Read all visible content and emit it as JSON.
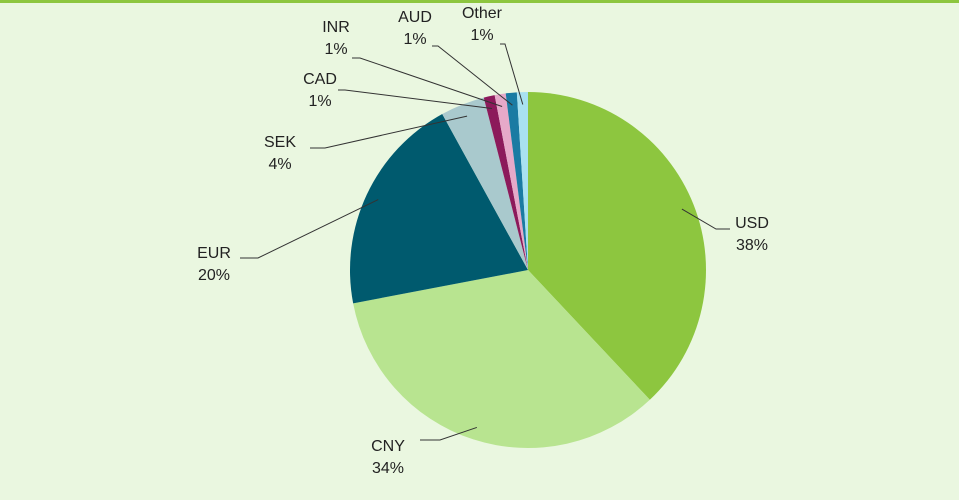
{
  "chart_data": {
    "type": "pie",
    "categories": [
      "USD",
      "CNY",
      "EUR",
      "SEK",
      "CAD",
      "INR",
      "AUD",
      "Other"
    ],
    "values": [
      38,
      34,
      20,
      4,
      1,
      1,
      1,
      1
    ],
    "value_labels": [
      "38%",
      "34%",
      "20%",
      "4%",
      "1%",
      "1%",
      "1%",
      "1%"
    ],
    "colors": [
      "#8dc63f",
      "#b8e490",
      "#005a6e",
      "#a9c9cd",
      "#8c1a5b",
      "#e6a9c9",
      "#1a7ba3",
      "#a9e1f1"
    ]
  }
}
